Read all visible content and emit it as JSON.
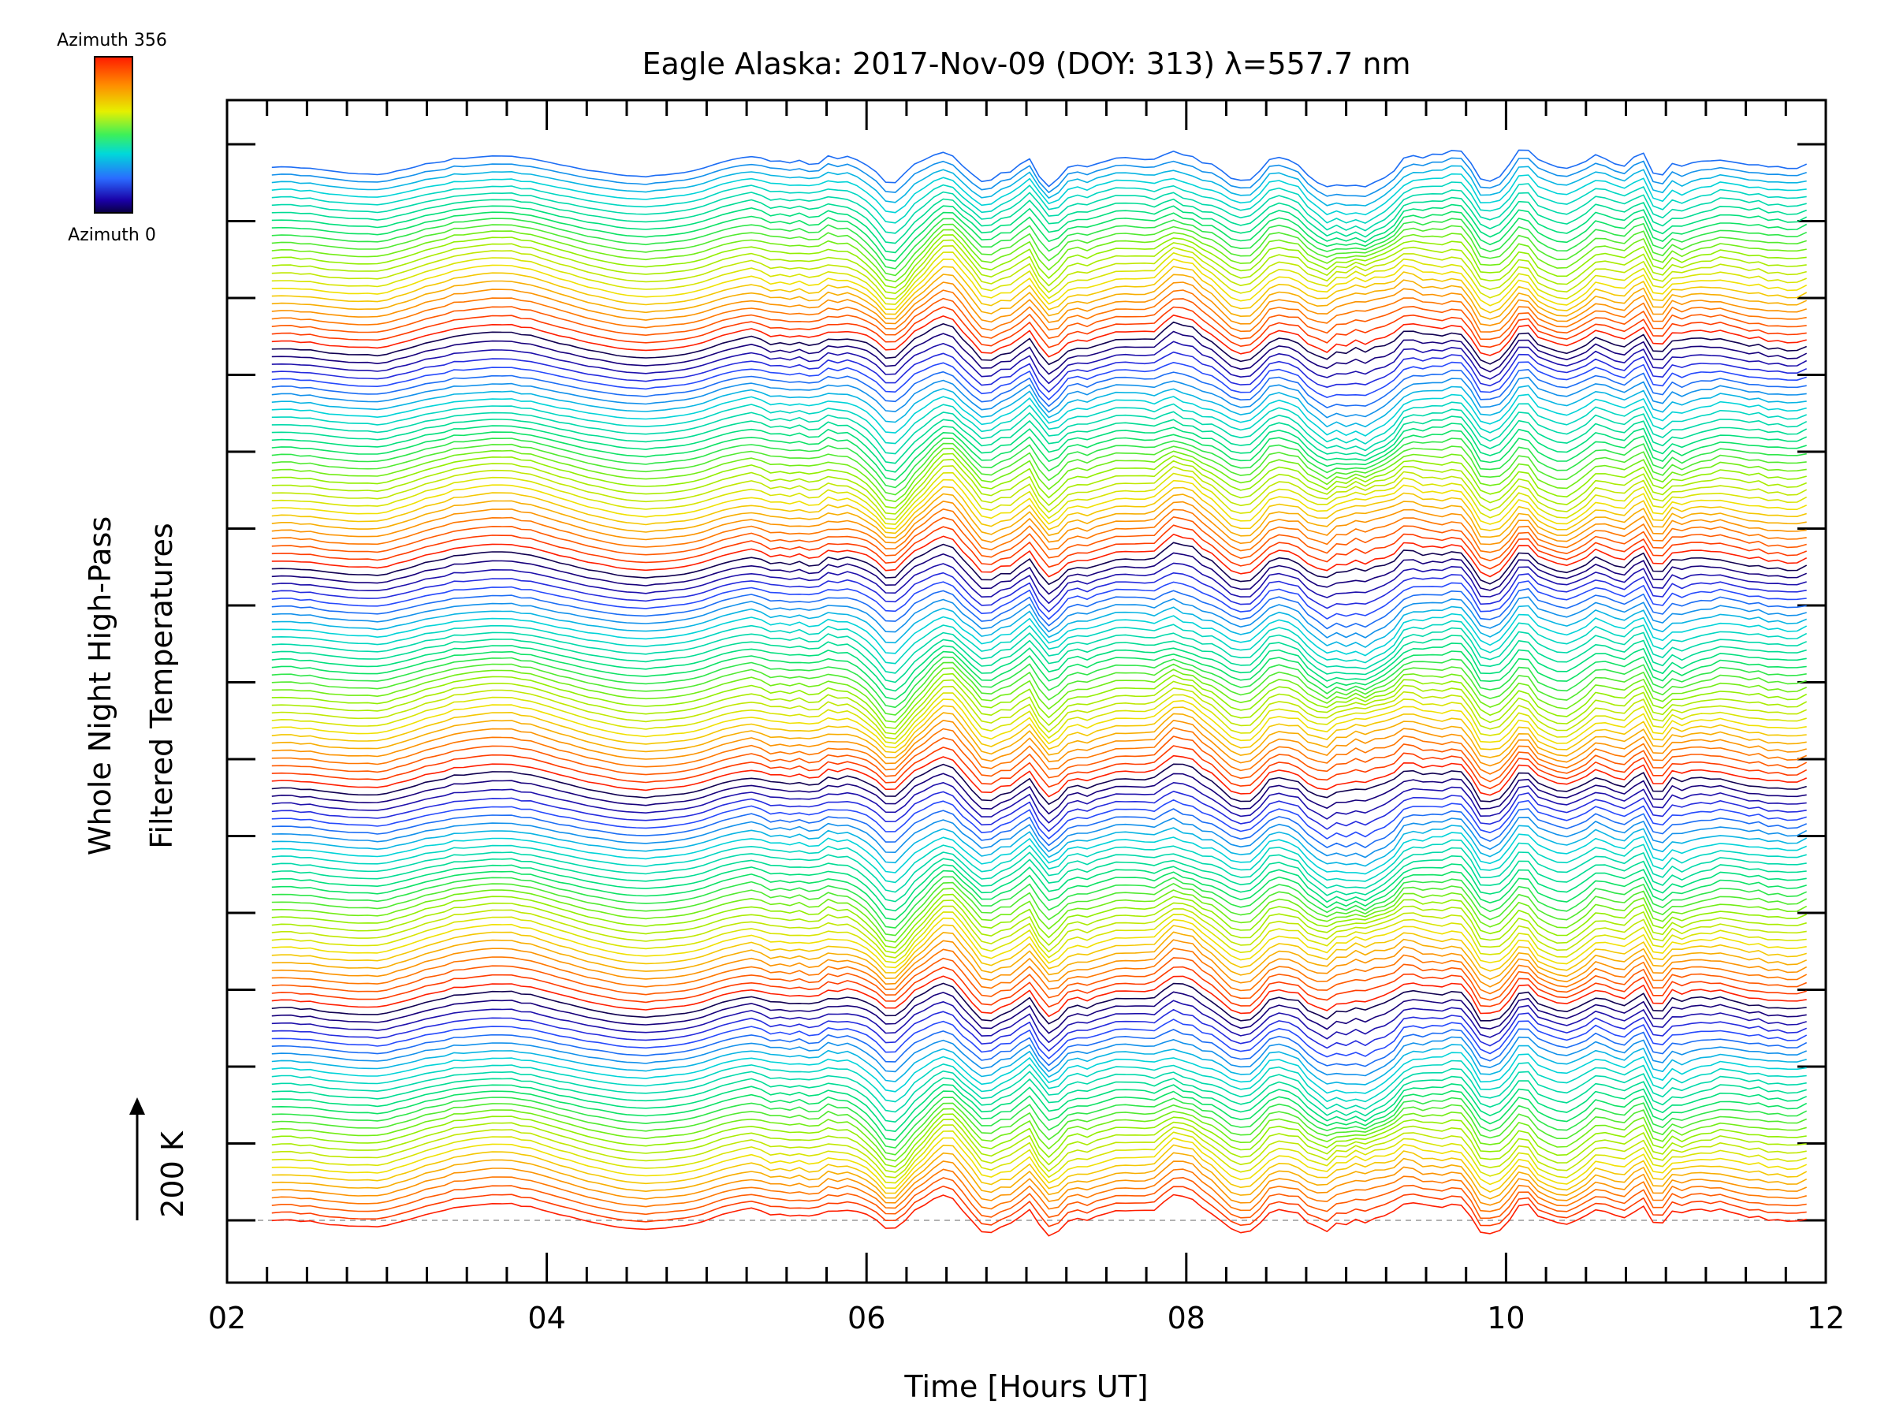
{
  "chart_data": {
    "type": "line",
    "title": "Eagle Alaska: 2017-Nov-09 (DOY: 313) λ=557.7 nm",
    "xlabel": "Time [Hours UT]",
    "ylabel_line1": "Whole Night High-Pass",
    "ylabel_line2": "Filtered Temperatures",
    "xlim": [
      2,
      12
    ],
    "x_ticks": [
      "02",
      "04",
      "06",
      "08",
      "10",
      "12"
    ],
    "scale_bar_label": "200 K",
    "series_count": 140,
    "series_azimuth_range": [
      0,
      356
    ],
    "x_range_series": [
      2.28,
      11.92
    ],
    "colorbar": {
      "top_label": "Azimuth 356",
      "bottom_label": "Azimuth 0",
      "colormap": "rainbow",
      "colors": [
        "#ff1a00",
        "#ff7a00",
        "#f2e600",
        "#a6f200",
        "#00e65c",
        "#00d9d9",
        "#2a6bff",
        "#1a00a6",
        "#100050"
      ]
    },
    "baseline": {
      "style": "dashed",
      "color": "#999999"
    },
    "grid": false,
    "legend": "colorbar top-left"
  }
}
